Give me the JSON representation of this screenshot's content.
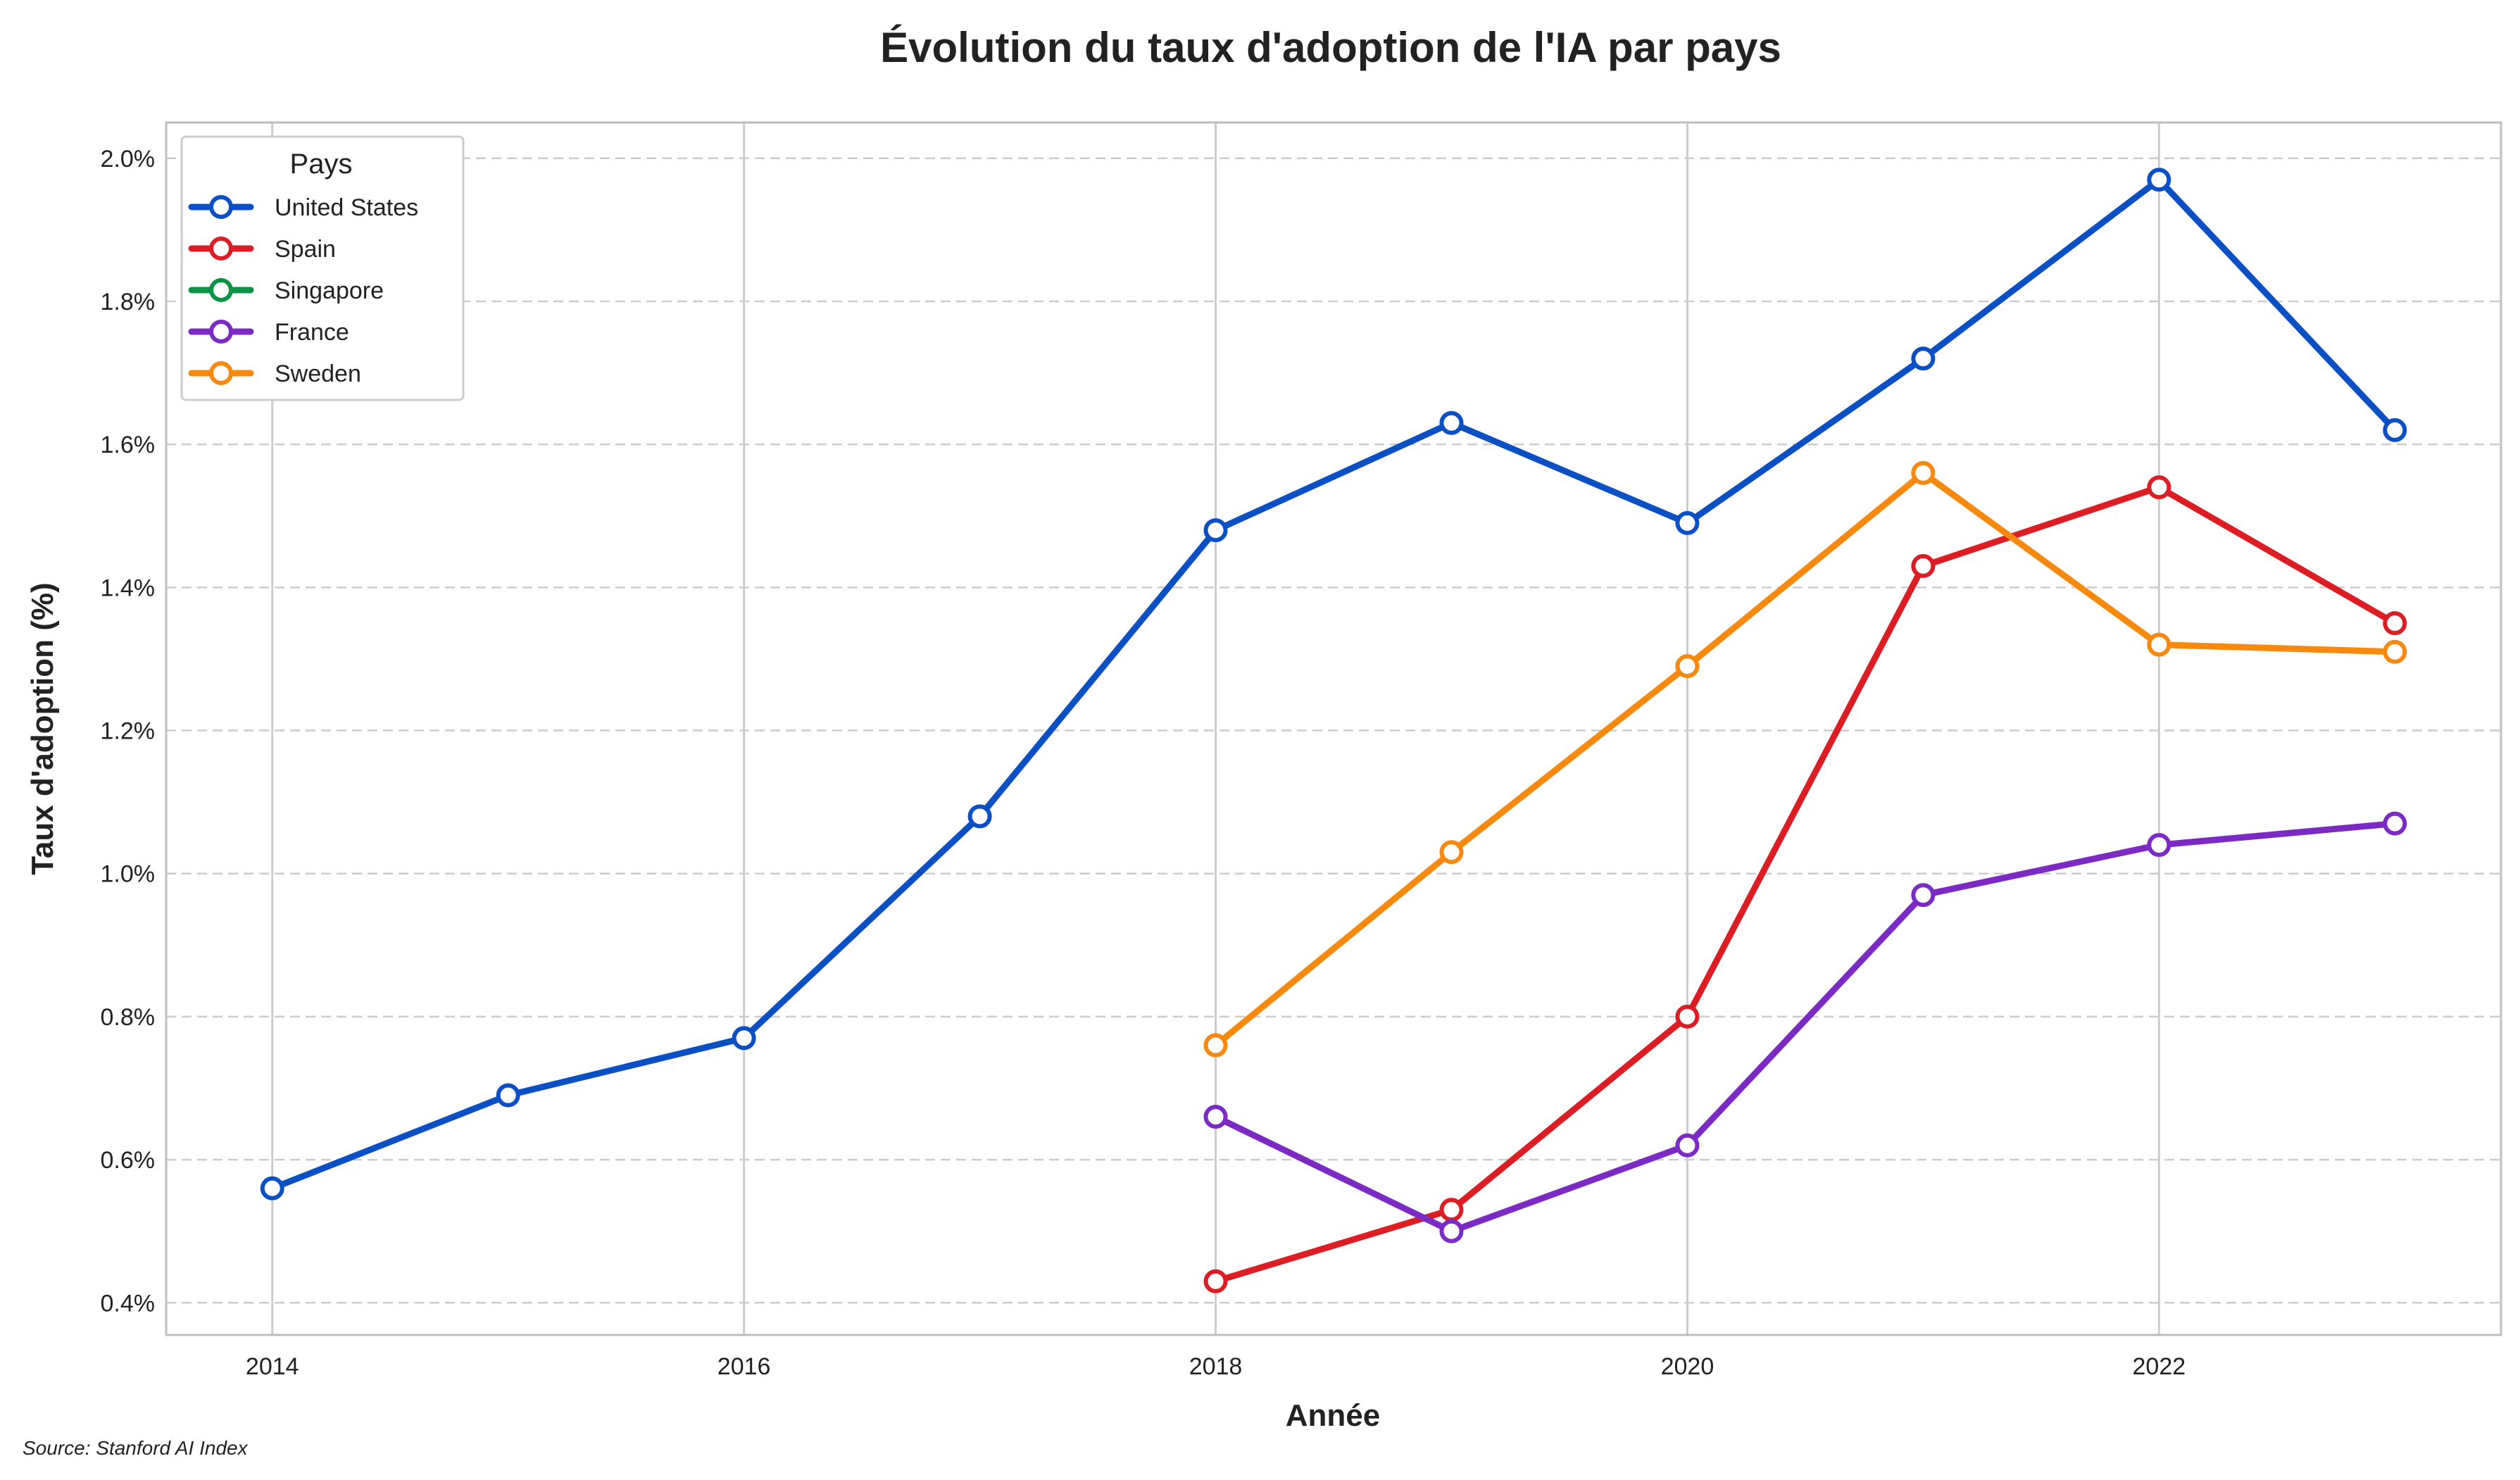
{
  "chart_data": {
    "type": "line",
    "title": "Évolution du taux d'adoption de l'IA par pays",
    "xlabel": "Année",
    "ylabel": "Taux d'adoption (%)",
    "source": "Source: Stanford AI Index",
    "xlim": [
      2013.55,
      2023.45
    ],
    "ylim": [
      0.355,
      2.05
    ],
    "x_ticks": [
      2014,
      2016,
      2018,
      2020,
      2022
    ],
    "x_tick_labels": [
      "2014",
      "2016",
      "2018",
      "2020",
      "2022"
    ],
    "y_ticks": [
      0.4,
      0.6,
      0.8,
      1.0,
      1.2,
      1.4,
      1.6,
      1.8,
      2.0
    ],
    "y_tick_labels": [
      "0.4%",
      "0.6%",
      "0.8%",
      "1.0%",
      "1.2%",
      "1.4%",
      "1.6%",
      "1.8%",
      "2.0%"
    ],
    "grid": true,
    "legend": {
      "title": "Pays",
      "placement": "top-left",
      "entries": [
        "United States",
        "Spain",
        "Singapore",
        "France",
        "Sweden"
      ]
    },
    "series": [
      {
        "name": "United States",
        "color": "#0a4fc4",
        "x": [
          2014,
          2015,
          2016,
          2017,
          2018,
          2019,
          2020,
          2021,
          2022,
          2023
        ],
        "y": [
          0.56,
          0.69,
          0.77,
          1.08,
          1.48,
          1.63,
          1.49,
          1.72,
          1.97,
          1.62
        ]
      },
      {
        "name": "Spain",
        "color": "#dc1e24",
        "x": [
          2018,
          2019,
          2020,
          2021,
          2022,
          2023
        ],
        "y": [
          0.43,
          0.53,
          0.8,
          1.43,
          1.54,
          1.35
        ]
      },
      {
        "name": "Singapore",
        "color": "#0b9444",
        "x": [],
        "y": []
      },
      {
        "name": "France",
        "color": "#7b2ac4",
        "x": [
          2018,
          2019,
          2020,
          2021,
          2022,
          2023
        ],
        "y": [
          0.66,
          0.5,
          0.62,
          0.97,
          1.04,
          1.07
        ]
      },
      {
        "name": "Sweden",
        "color": "#f6890e",
        "x": [
          2018,
          2019,
          2020,
          2021,
          2022,
          2023
        ],
        "y": [
          0.76,
          1.03,
          1.29,
          1.56,
          1.32,
          1.31
        ]
      }
    ]
  }
}
